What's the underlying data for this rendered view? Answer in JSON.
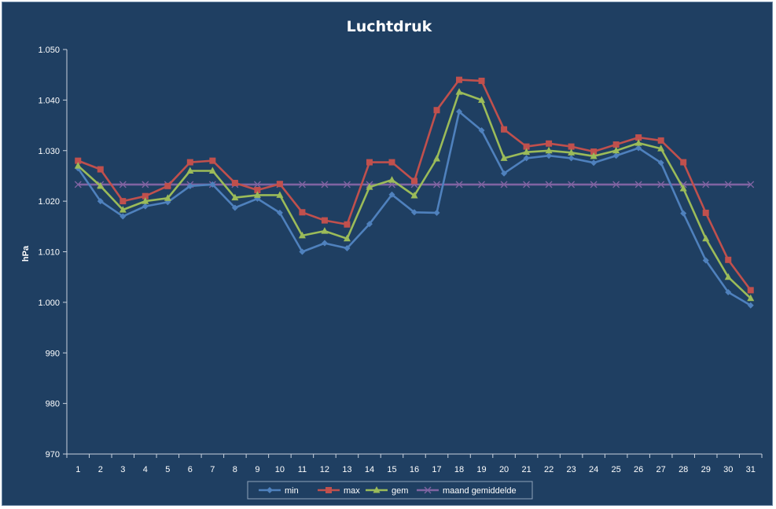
{
  "chart_data": {
    "type": "line",
    "title": "Luchtdruk",
    "xlabel": "",
    "ylabel": "hPa",
    "categories": [
      "1",
      "2",
      "3",
      "4",
      "5",
      "6",
      "7",
      "8",
      "9",
      "10",
      "11",
      "12",
      "13",
      "14",
      "15",
      "16",
      "17",
      "18",
      "19",
      "20",
      "21",
      "22",
      "23",
      "24",
      "25",
      "26",
      "27",
      "28",
      "29",
      "30",
      "31"
    ],
    "ylim": [
      970,
      1050
    ],
    "yticks": [
      970,
      980,
      990,
      1000,
      1010,
      1020,
      1030,
      1040,
      1050
    ],
    "ytick_labels": [
      "970",
      "980",
      "990",
      "1.000",
      "1.010",
      "1.020",
      "1.030",
      "1.040",
      "1.050"
    ],
    "grid": false,
    "legend_position": "bottom",
    "series": [
      {
        "name": "min",
        "color": "#4f81bd",
        "marker": "diamond",
        "values": [
          1026.5,
          1020.0,
          1017.0,
          1019.0,
          1019.8,
          1023.0,
          1023.3,
          1018.7,
          1020.5,
          1017.7,
          1010.0,
          1011.7,
          1010.7,
          1015.5,
          1021.3,
          1017.8,
          1017.7,
          1037.7,
          1034.0,
          1025.5,
          1028.5,
          1029.0,
          1028.5,
          1027.6,
          1029.0,
          1030.5,
          1027.6,
          1017.6,
          1008.3,
          1002.0,
          999.4
        ]
      },
      {
        "name": "max",
        "color": "#c0504d",
        "marker": "square",
        "values": [
          1028.0,
          1026.3,
          1020.0,
          1021.0,
          1023.0,
          1027.7,
          1028.0,
          1023.6,
          1022.2,
          1023.4,
          1017.8,
          1016.2,
          1015.4,
          1027.7,
          1027.7,
          1024.0,
          1038.0,
          1044.0,
          1043.8,
          1034.2,
          1030.8,
          1031.4,
          1030.8,
          1029.8,
          1031.2,
          1032.6,
          1032.0,
          1027.7,
          1017.7,
          1008.4,
          1002.4
        ]
      },
      {
        "name": "gem",
        "color": "#9bbb59",
        "marker": "triangle",
        "values": [
          1027.0,
          1023.0,
          1018.3,
          1020.0,
          1020.6,
          1026.0,
          1026.0,
          1020.7,
          1021.2,
          1021.2,
          1013.2,
          1014.1,
          1012.6,
          1022.8,
          1024.2,
          1021.1,
          1028.4,
          1041.6,
          1040.0,
          1028.5,
          1029.7,
          1030.0,
          1029.6,
          1028.9,
          1030.0,
          1031.5,
          1030.4,
          1022.5,
          1012.6,
          1005.0,
          1000.8
        ]
      },
      {
        "name": "maand gemiddelde",
        "color": "#8064a2",
        "marker": "x",
        "values": [
          1023.3,
          1023.3,
          1023.3,
          1023.3,
          1023.3,
          1023.3,
          1023.3,
          1023.3,
          1023.3,
          1023.3,
          1023.3,
          1023.3,
          1023.3,
          1023.3,
          1023.3,
          1023.3,
          1023.3,
          1023.3,
          1023.3,
          1023.3,
          1023.3,
          1023.3,
          1023.3,
          1023.3,
          1023.3,
          1023.3,
          1023.3,
          1023.3,
          1023.3,
          1023.3,
          1023.3
        ]
      }
    ]
  }
}
